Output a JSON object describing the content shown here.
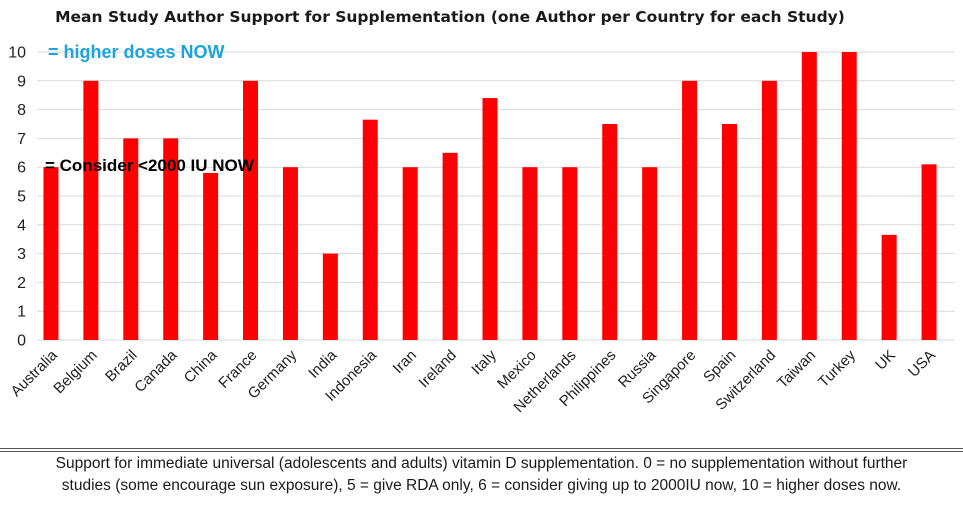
{
  "chart_data": {
    "type": "bar",
    "title": "Mean Study Author Support for Supplementation (one Author per Country for each Study)",
    "categories": [
      "Australia",
      "Belgium",
      "Brazil",
      "Canada",
      "China",
      "France",
      "Germany",
      "India",
      "Indonesia",
      "Iran",
      "Ireland",
      "Italy",
      "Mexico",
      "Netherlands",
      "Philippines",
      "Russia",
      "Singapore",
      "Spain",
      "Switzerland",
      "Taiwan",
      "Turkey",
      "UK",
      "USA"
    ],
    "values": [
      6,
      9,
      7,
      7,
      5.8,
      9,
      6,
      3,
      7.65,
      6,
      6.5,
      8.4,
      6,
      6,
      7.5,
      6,
      9,
      7.5,
      9,
      10,
      10,
      3.65,
      6.1
    ],
    "ylim": [
      0,
      10
    ],
    "yticks": [
      0,
      1,
      2,
      3,
      4,
      5,
      6,
      7,
      8,
      9,
      10
    ],
    "xlabel": "",
    "ylabel": "",
    "grid": true,
    "bar_color": "#ff0000",
    "annotations": [
      {
        "text": "= higher doses NOW",
        "color": "#1aa3dc",
        "at_value": 10
      },
      {
        "text": "= Consider <2000 IU NOW",
        "color": "#000000",
        "at_value": 6
      }
    ]
  },
  "caption": {
    "line1": "Support for immediate universal (adolescents and adults) vitamin D supplementation.  0 = no supplementation without further",
    "line2": "studies (some encourage sun exposure), 5 = give RDA only, 6 = consider giving up to 2000IU now, 10 = higher doses now."
  }
}
